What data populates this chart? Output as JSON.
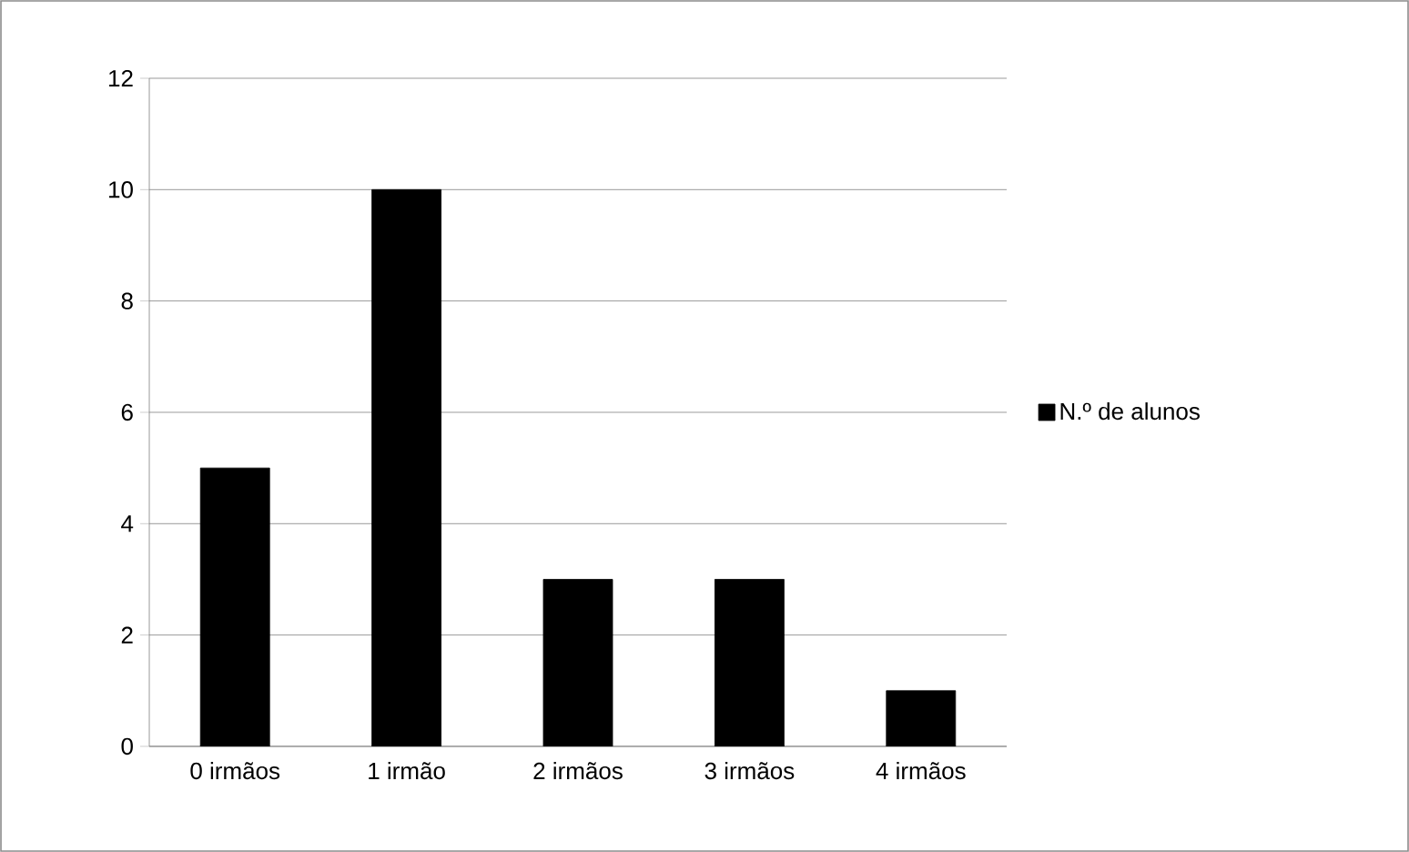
{
  "chart_data": {
    "type": "bar",
    "categories": [
      "0 irmãos",
      "1 irmão",
      "2 irmãos",
      "3 irmãos",
      "4 irmãos"
    ],
    "series": [
      {
        "name": "N.º de alunos",
        "color": "#000000",
        "values": [
          5,
          10,
          3,
          3,
          1
        ]
      }
    ],
    "ylim": [
      0,
      12
    ],
    "yticks": [
      0,
      2,
      4,
      6,
      8,
      10,
      12
    ],
    "grid": "y",
    "legend": "right"
  }
}
